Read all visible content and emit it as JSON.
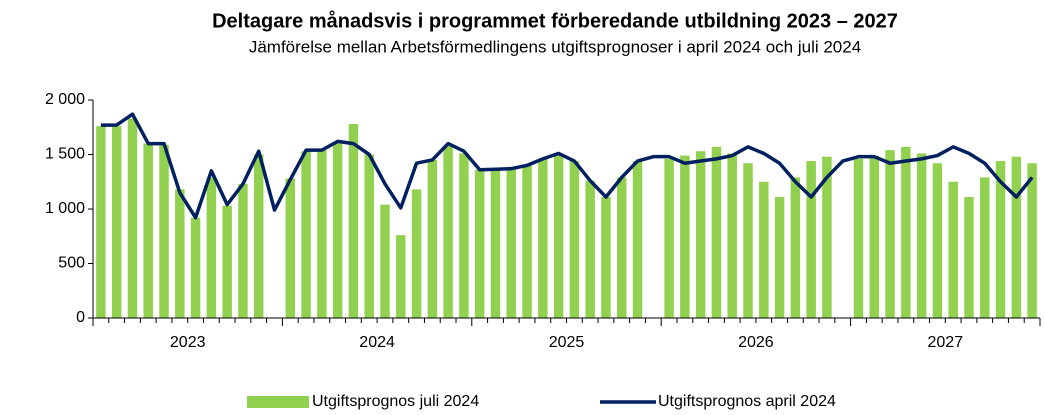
{
  "chart_data": {
    "type": "bar_line",
    "title": "Deltagare månadsvis i programmet förberedande utbildning 2023 – 2027",
    "subtitle": "Jämförelse mellan Arbetsförmedlingens utgiftsprognoser i april 2024 och juli 2024",
    "years": [
      "2023",
      "2024",
      "2025",
      "2026",
      "2027"
    ],
    "ylim": [
      0,
      2000
    ],
    "yticks": [
      0,
      500,
      {
        "value": 1000,
        "label": "1 000"
      },
      {
        "value": 1500,
        "label": "1 500"
      },
      {
        "value": 2000,
        "label": "2 000"
      }
    ],
    "legend": "bottom",
    "series": [
      {
        "name": "Utgiftsprognos juli 2024",
        "type": "bar",
        "color": "#92d050",
        "values": [
          1760,
          1760,
          1830,
          1600,
          1590,
          1180,
          920,
          1290,
          1030,
          1230,
          1500,
          null,
          1280,
          1530,
          1540,
          1600,
          1780,
          1500,
          1040,
          760,
          1180,
          1450,
          1580,
          1510,
          1360,
          1365,
          1370,
          1400,
          1460,
          1490,
          1440,
          1260,
          1110,
          1290,
          1440,
          null,
          1460,
          1490,
          1530,
          1570,
          1510,
          1420,
          1250,
          1110,
          1290,
          1440,
          1480,
          null,
          1460,
          1490,
          1540,
          1570,
          1510,
          1420,
          1250,
          1110,
          1290,
          1440,
          1480,
          1420
        ]
      },
      {
        "name": "Utgiftsprognos april 2024",
        "type": "line",
        "color": "#002060",
        "values": [
          1770,
          1770,
          1870,
          1600,
          1600,
          1150,
          920,
          1350,
          1040,
          1230,
          1530,
          990,
          1270,
          1540,
          1540,
          1620,
          1600,
          1500,
          1230,
          1010,
          1420,
          1450,
          1600,
          1530,
          1360,
          1365,
          1370,
          1400,
          1460,
          1510,
          1440,
          1260,
          1110,
          1290,
          1440,
          1480,
          1480,
          1420,
          1440,
          1460,
          1490,
          1570,
          1510,
          1420,
          1250,
          1110,
          1290,
          1440,
          1480,
          1480,
          1420,
          1440,
          1460,
          1490,
          1570,
          1510,
          1420,
          1250,
          1110,
          1290
        ]
      }
    ]
  }
}
